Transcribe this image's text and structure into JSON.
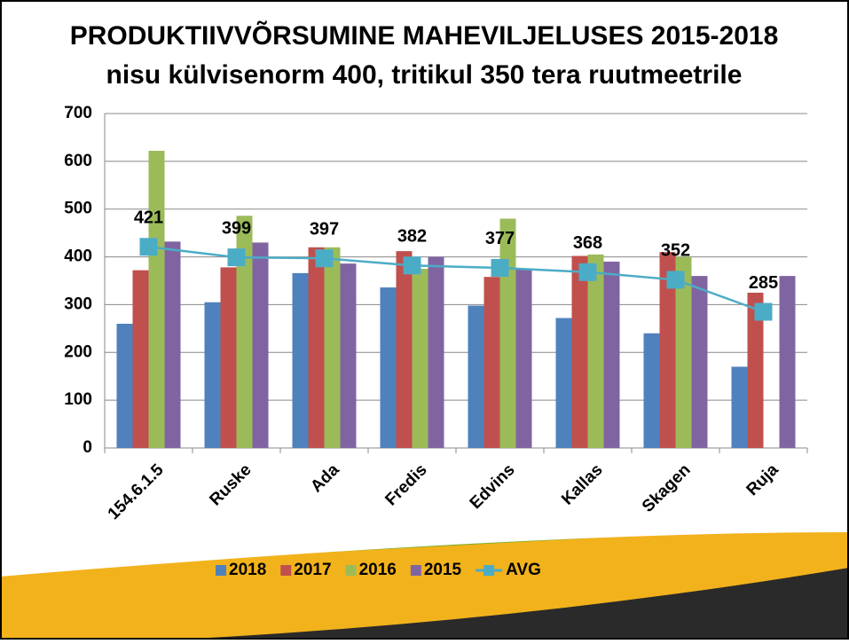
{
  "chart_data": {
    "type": "bar",
    "title": "PRODUKTIIVVÕRSUMINE MAHEVILJELUSES 2015-2018",
    "subtitle": "nisu külvisenorm 400, tritikul 350 tera ruutmeetrile",
    "categories": [
      "154.6.1.5",
      "Ruske",
      "Ada",
      "Fredis",
      "Edvins",
      "Kallas",
      "Skagen",
      "Ruja"
    ],
    "series": [
      {
        "name": "2018",
        "color": "#4f81bd",
        "type": "bar",
        "values": [
          260,
          305,
          366,
          336,
          298,
          272,
          240,
          170
        ]
      },
      {
        "name": "2017",
        "color": "#c0504d",
        "type": "bar",
        "values": [
          372,
          378,
          420,
          412,
          358,
          402,
          410,
          325
        ]
      },
      {
        "name": "2016",
        "color": "#9bbb59",
        "type": "bar",
        "values": [
          622,
          486,
          420,
          375,
          480,
          405,
          400,
          null
        ]
      },
      {
        "name": "2015",
        "color": "#8064a2",
        "type": "bar",
        "values": [
          432,
          430,
          386,
          400,
          375,
          390,
          360,
          360
        ]
      },
      {
        "name": "AVG",
        "color": "#4bacc6",
        "type": "line",
        "values": [
          421,
          399,
          397,
          382,
          377,
          368,
          352,
          285
        ]
      }
    ],
    "ylim": [
      0,
      700
    ],
    "yticks": [
      0,
      100,
      200,
      300,
      400,
      500,
      600,
      700
    ],
    "grid": true,
    "legend": "bottom"
  }
}
